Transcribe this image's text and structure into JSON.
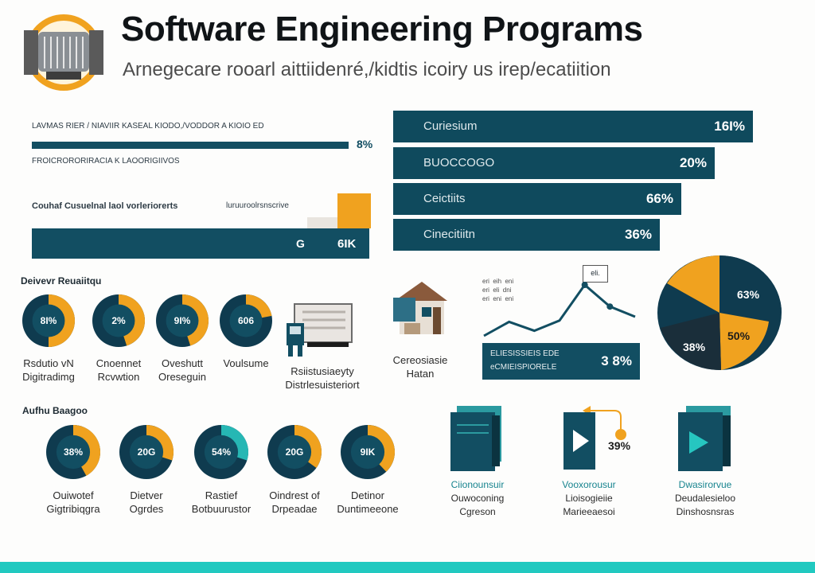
{
  "header": {
    "title": "Software Engineering Programs",
    "subtitle": "Arnegecare rooarl aittiidenré,/kidtis icoiry us irep/ecatiition"
  },
  "top_left": {
    "line1": "LAVMAS RIER / NIAVIIR KASEAL KIODO,/VODDOR A KIOIO ED",
    "bar1_value": "8%",
    "line2": "FROICRORORIRACIA K LAOORIGIIVOS",
    "row_label": "Couhaf Cusuelnal laol vorleriorerts",
    "row_note": "luruuroolrsnscrive",
    "bar2_left": "G",
    "bar2_value": "6IK"
  },
  "right_bars": {
    "bar_color": "#0f4a5d",
    "items": [
      {
        "label": "Curiesium",
        "value": "16I%",
        "fraction": 1.0
      },
      {
        "label": "BUOCCOGO",
        "value": "20%",
        "fraction": 0.89
      },
      {
        "label": "Ceictiits",
        "value": "66%",
        "fraction": 0.8
      },
      {
        "label": "Cinecitiitn",
        "value": "36%",
        "fraction": 0.74
      }
    ]
  },
  "section1": {
    "heading": "Deivevr Reuaiitqu",
    "donuts": [
      {
        "value": "8I%",
        "fraction": 0.5,
        "cap1": "Rsdutio vN",
        "cap2": "Digitradimg"
      },
      {
        "value": "2%",
        "fraction": 0.45,
        "cap1": "Cnoennet",
        "cap2": "Rcvwtion"
      },
      {
        "value": "9I%",
        "fraction": 0.45,
        "cap1": "Oveshutt",
        "cap2": "Oreseguin"
      },
      {
        "value": "606",
        "fraction": 0.22,
        "cap1": "",
        "cap2": "Voulsume"
      }
    ],
    "machine_cap1": "Rsiistusiaeyty",
    "machine_cap2": "Distrlesuisteriort",
    "house_cap1": "Cereosiasie",
    "house_cap2": "Hatan"
  },
  "line_panel": {
    "legend": "eri  eih  eni\neri  eli  dni\neri  eni  eni",
    "tag": "eli.",
    "box_line1": "ELIESISSIEIS EDE",
    "box_line2": "eCMIEISPIORELE",
    "box_value": "3 8%",
    "points": [
      0.1,
      0.32,
      0.18,
      0.34,
      0.9,
      0.56,
      0.4
    ]
  },
  "big_pie": {
    "label_top": "63%",
    "label_left": "38%",
    "label_right": "50%"
  },
  "section2": {
    "heading": "Aufhu Baagoo",
    "donuts": [
      {
        "value": "38%",
        "fraction": 0.42,
        "cap1": "Ouiwotef",
        "cap2": "Gigtribiqgra",
        "accent": "#f0a21f"
      },
      {
        "value": "20G",
        "fraction": 0.3,
        "cap1": "Dietver",
        "cap2": "Ogrdes",
        "accent": "#f0a21f"
      },
      {
        "value": "54%",
        "fraction": 0.3,
        "cap1": "Rastief",
        "cap2": "Botbuurustor",
        "accent": "#26b7b4"
      },
      {
        "value": "20G",
        "fraction": 0.35,
        "cap1": "Oindrest of",
        "cap2": "Drpeadae",
        "accent": "#f0a21f"
      },
      {
        "value": "9IK",
        "fraction": 0.38,
        "cap1": "Detinor",
        "cap2": "Duntimeeone",
        "accent": "#f0a21f"
      }
    ]
  },
  "panels": [
    {
      "cap1": "Ciionounsuir",
      "cap2": "Ouwoconing",
      "cap3": "Cgreson"
    },
    {
      "cap1": "Vooxorousur",
      "cap2": "Lioisogieiie",
      "cap3": "Marieeaesoi",
      "value": "39%"
    },
    {
      "cap1": "Dwasirorvue",
      "cap2": "Deudalesieloo",
      "cap3": "Dinshosnsras"
    }
  ],
  "colors": {
    "teal": "#124e62",
    "orange": "#f0a21f",
    "aqua": "#21c9c0"
  }
}
